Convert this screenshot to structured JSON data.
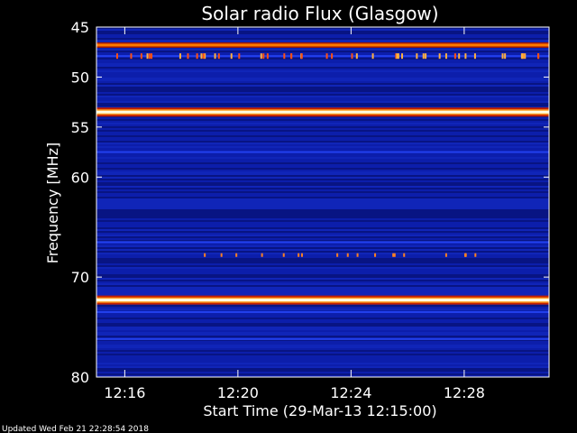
{
  "chart_data": {
    "type": "heatmap",
    "title": "Solar radio Flux (Glasgow)",
    "ylabel": "Frequency [MHz]",
    "xlabel": "Start Time (29-Mar-13 12:15:00)",
    "footer": "Updated Wed Feb 21 22:28:54 2018",
    "y_axis": {
      "range": [
        45,
        80
      ],
      "direction": "top-to-bottom",
      "tick_values": [
        45,
        50,
        55,
        60,
        70,
        80
      ],
      "tick_labels": [
        "45",
        "50",
        "55",
        "60",
        "70",
        "80"
      ]
    },
    "x_axis": {
      "range_minutes": [
        0,
        16
      ],
      "tick_minutes": [
        1,
        5,
        9,
        13
      ],
      "tick_labels": [
        "12:16",
        "12:20",
        "12:24",
        "12:28"
      ]
    },
    "background_color": "#0b1a9c",
    "bright_bands": [
      {
        "freq_mhz": 46.8,
        "intensity": "high",
        "color": "#ff7a00"
      },
      {
        "freq_mhz": 53.5,
        "intensity": "very-high",
        "color": "#ffffe0"
      },
      {
        "freq_mhz": 72.3,
        "intensity": "very-high",
        "color": "#ffffe0"
      }
    ],
    "weak_bands_mhz": [
      47.9,
      57.5,
      66.5,
      73.5,
      76.2
    ],
    "colors": {
      "background": "#000000",
      "text": "#ffffff",
      "low": "#0a1590",
      "mid": "#c03000",
      "high": "#ffffff"
    }
  }
}
